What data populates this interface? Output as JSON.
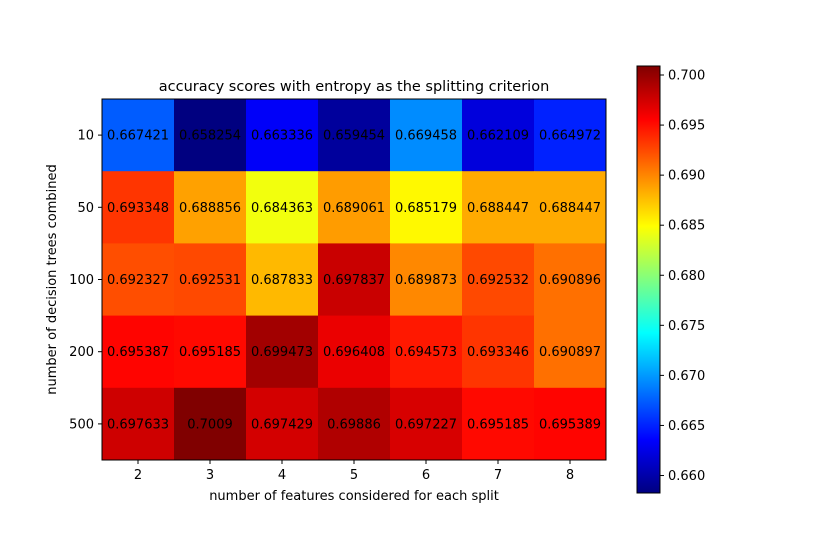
{
  "chart_data": {
    "type": "heatmap",
    "title": "accuracy scores with entropy as the splitting criterion",
    "xlabel": "number of features considered for each split",
    "ylabel": "number of decision trees combined",
    "x_categories": [
      "2",
      "3",
      "4",
      "5",
      "6",
      "7",
      "8"
    ],
    "y_categories": [
      "10",
      "50",
      "100",
      "200",
      "500"
    ],
    "values": [
      [
        0.667421,
        0.658254,
        0.663336,
        0.659454,
        0.669458,
        0.662109,
        0.664972
      ],
      [
        0.693348,
        0.688856,
        0.684363,
        0.689061,
        0.685179,
        0.688447,
        0.688447
      ],
      [
        0.692327,
        0.692531,
        0.687833,
        0.697837,
        0.689873,
        0.692532,
        0.690896
      ],
      [
        0.695387,
        0.695185,
        0.699473,
        0.696408,
        0.694573,
        0.693346,
        0.690897
      ],
      [
        0.697633,
        0.7009,
        0.697429,
        0.69886,
        0.697227,
        0.695185,
        0.695389
      ]
    ],
    "value_labels": [
      [
        "0.667421",
        "0.658254",
        "0.663336",
        "0.659454",
        "0.669458",
        "0.662109",
        "0.664972"
      ],
      [
        "0.693348",
        "0.688856",
        "0.684363",
        "0.689061",
        "0.685179",
        "0.688447",
        "0.688447"
      ],
      [
        "0.692327",
        "0.692531",
        "0.687833",
        "0.697837",
        "0.689873",
        "0.692532",
        "0.690896"
      ],
      [
        "0.695387",
        "0.695185",
        "0.699473",
        "0.696408",
        "0.694573",
        "0.693346",
        "0.690897"
      ],
      [
        "0.697633",
        "0.7009",
        "0.697429",
        "0.69886",
        "0.697227",
        "0.695185",
        "0.695389"
      ]
    ],
    "colormap": "jet",
    "vmin": 0.658254,
    "vmax": 0.7009,
    "colorbar_ticks": [
      "0.660",
      "0.665",
      "0.670",
      "0.675",
      "0.680",
      "0.685",
      "0.690",
      "0.695",
      "0.700"
    ],
    "colorbar_tick_values": [
      0.66,
      0.665,
      0.67,
      0.675,
      0.68,
      0.685,
      0.69,
      0.695,
      0.7
    ],
    "grid": false
  }
}
